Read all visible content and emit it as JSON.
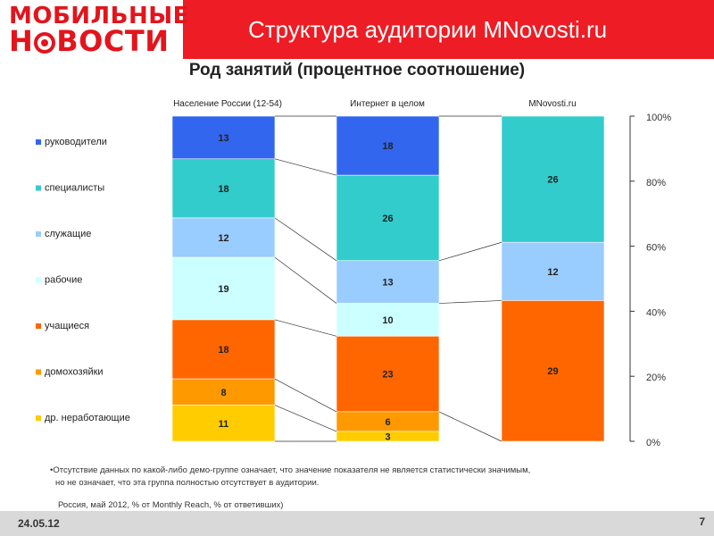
{
  "logo": {
    "line1": "МОБИЛЬНЫЕ",
    "line2_pre": "Н",
    "line2_post": "ВОСТИ"
  },
  "header": {
    "title": "Структура аудитории MNovosti.ru"
  },
  "chart_title": "Род занятий (процентное соотношение)",
  "chart_data": {
    "type": "bar",
    "stacked": true,
    "percent": true,
    "title": "Род занятий (процентное соотношение)",
    "categories": [
      "Население России (12-54)",
      "Интернет в целом",
      "MNovosti.ru"
    ],
    "series": [
      {
        "name": "руководители",
        "color": "#3366ee",
        "values": [
          13,
          18,
          null
        ]
      },
      {
        "name": "специалисты",
        "color": "#33cccc",
        "values": [
          18,
          26,
          26
        ]
      },
      {
        "name": "служащие",
        "color": "#99ccff",
        "values": [
          12,
          13,
          12
        ]
      },
      {
        "name": "рабочие",
        "color": "#ccffff",
        "values": [
          19,
          10,
          null
        ]
      },
      {
        "name": "учащиеся",
        "color": "#ff6600",
        "values": [
          18,
          23,
          29
        ]
      },
      {
        "name": "домохозяйки",
        "color": "#ff9900",
        "values": [
          8,
          6,
          null
        ]
      },
      {
        "name": "др. неработающие",
        "color": "#ffcc00",
        "values": [
          11,
          3,
          null
        ]
      }
    ],
    "yaxis_ticks": [
      "100%",
      "80%",
      "60%",
      "40%",
      "20%",
      "0%"
    ],
    "ylim": [
      0,
      100
    ],
    "legend_position": "left"
  },
  "footnote": {
    "line1": "•Отсутствие данных по какой-либо демо-группе означает, что значение показателя не является статистически значимым,",
    "line2": "но не означает, что эта группа  полностью отсутствует в аудитории."
  },
  "source": "Россия, май 2012, % от Monthly Reach, % от ответивших)",
  "footer": {
    "date": "24.05.12",
    "page": "7"
  }
}
